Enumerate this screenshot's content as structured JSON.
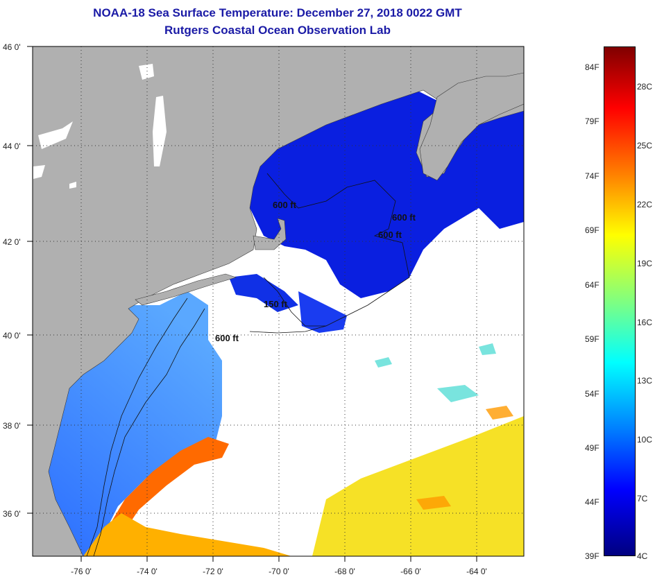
{
  "header": {
    "title_line1": "NOAA-18 Sea Surface Temperature:  December 27, 2018 0022 GMT",
    "title_line2": "Rutgers Coastal Ocean Observation Lab"
  },
  "map": {
    "lon_ticks": [
      "-76 0'",
      "-74 0'",
      "-72 0'",
      "-70 0'",
      "-68 0'",
      "-66 0'",
      "-64 0'"
    ],
    "lat_ticks": [
      "46 0'",
      "44 0'",
      "42 0'",
      "40 0'",
      "38 0'",
      "36 0'"
    ],
    "lon_range": [
      -77,
      -62.7
    ],
    "lat_range": [
      35.0,
      46.0
    ],
    "grid": "dotted",
    "land_color": "#b0b0b0",
    "cloud_color": "#ffffff",
    "contour_labels": [
      "600 ft",
      "600 ft",
      "600 ft",
      "150 ft",
      "600 ft"
    ]
  },
  "colorbar": {
    "fahrenheit_labels": [
      "84F",
      "79F",
      "74F",
      "69F",
      "64F",
      "59F",
      "54F",
      "49F",
      "44F",
      "39F"
    ],
    "celsius_labels": [
      "28C",
      "25C",
      "22C",
      "19C",
      "16C",
      "13C",
      "10C",
      "7C",
      "4C"
    ],
    "colors": [
      "#000080",
      "#0000ff",
      "#0080ff",
      "#00ffff",
      "#80ff80",
      "#ffff00",
      "#ff8000",
      "#ff0000",
      "#800000"
    ]
  }
}
